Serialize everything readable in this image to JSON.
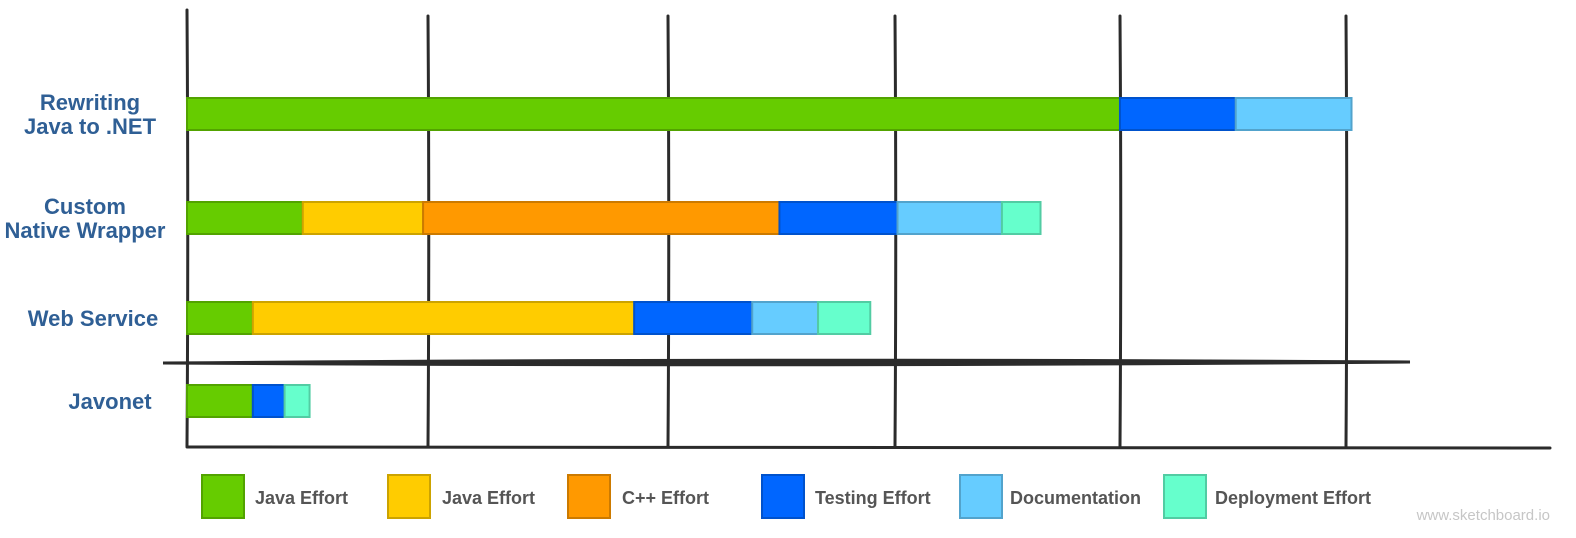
{
  "chart_data": {
    "type": "bar",
    "orientation": "horizontal",
    "stacked": true,
    "grid": true,
    "legend_position": "bottom",
    "categories": [
      [
        "Rewriting",
        "Java to .NET"
      ],
      [
        "Custom",
        "Native Wrapper"
      ],
      [
        "Web Service"
      ],
      [
        "Javonet"
      ]
    ],
    "xlim": [
      0,
      5.14
    ],
    "series": [
      {
        "name": "Java Effort",
        "color": "#66cc00",
        "values": [
          4.11,
          0.51,
          0.29,
          0.29
        ]
      },
      {
        "name": "Java Effort",
        "color": "#ffcc00",
        "values": [
          0,
          0.53,
          1.68,
          0
        ]
      },
      {
        "name": "C++ Effort",
        "color": "#ff9900",
        "values": [
          0,
          1.57,
          0,
          0
        ]
      },
      {
        "name": "Testing Effort",
        "color": "#0066ff",
        "values": [
          0.51,
          0.52,
          0.52,
          0.14
        ]
      },
      {
        "name": "Documentation",
        "color": "#66ccff",
        "values": [
          0.51,
          0.46,
          0.29,
          0
        ]
      },
      {
        "name": "Deployment Effort",
        "color": "#66ffcc",
        "values": [
          0,
          0.17,
          0.23,
          0.11
        ]
      }
    ]
  },
  "watermark": "www.sketchboard.io"
}
